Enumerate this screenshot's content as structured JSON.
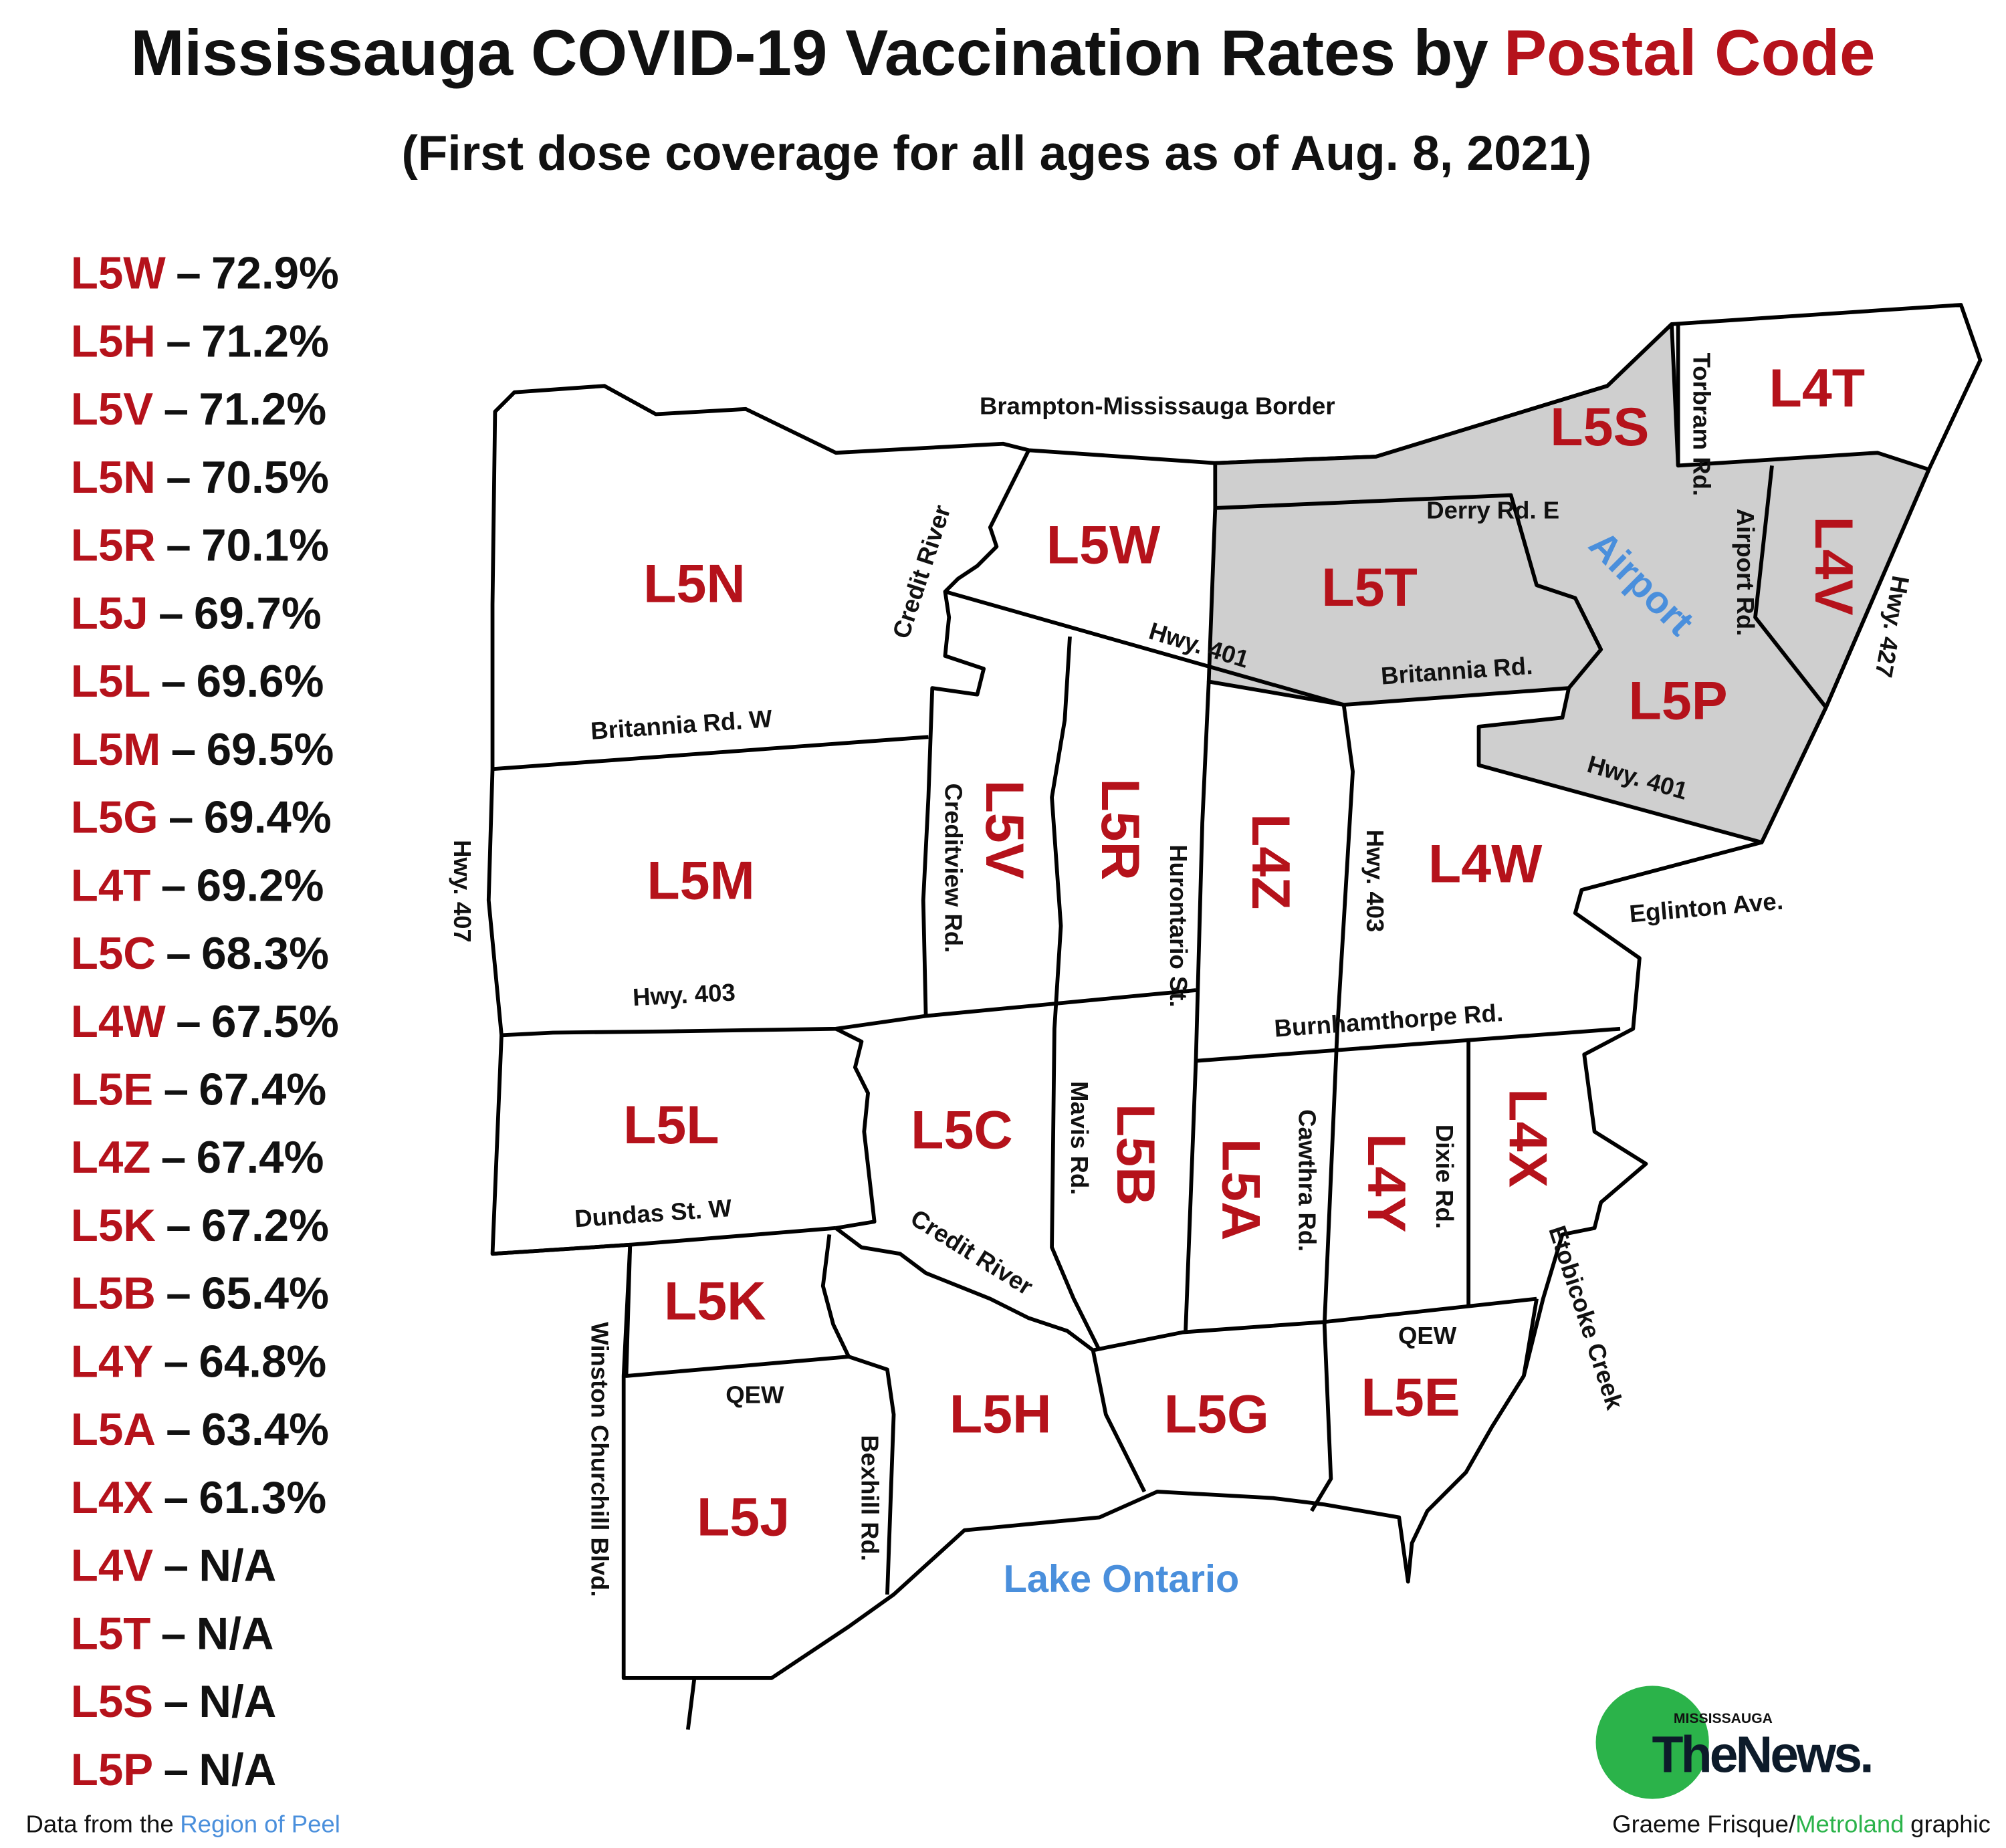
{
  "header": {
    "title": "Mississauga COVID-19 Vaccination Rates by",
    "title_highlight": "Postal Code",
    "subtitle": "(First dose coverage for all ages as of Aug. 8, 2021)"
  },
  "legend": {
    "separator": "–",
    "items": [
      {
        "code": "L5W",
        "rate": "72.9%"
      },
      {
        "code": "L5H",
        "rate": "71.2%"
      },
      {
        "code": "L5V",
        "rate": "71.2%"
      },
      {
        "code": "L5N",
        "rate": "70.5%"
      },
      {
        "code": "L5R",
        "rate": "70.1%"
      },
      {
        "code": "L5J",
        "rate": "69.7%"
      },
      {
        "code": "L5L",
        "rate": "69.6%"
      },
      {
        "code": "L5M",
        "rate": "69.5%"
      },
      {
        "code": "L5G",
        "rate": "69.4%"
      },
      {
        "code": "L4T",
        "rate": "69.2%"
      },
      {
        "code": "L5C",
        "rate": "68.3%"
      },
      {
        "code": "L4W",
        "rate": "67.5%"
      },
      {
        "code": "L5E",
        "rate": "67.4%"
      },
      {
        "code": "L4Z",
        "rate": "67.4%"
      },
      {
        "code": "L5K",
        "rate": "67.2%"
      },
      {
        "code": "L5B",
        "rate": "65.4%"
      },
      {
        "code": "L4Y",
        "rate": "64.8%"
      },
      {
        "code": "L5A",
        "rate": "63.4%"
      },
      {
        "code": "L4X",
        "rate": "61.3%"
      },
      {
        "code": "L4V",
        "rate": "N/A"
      },
      {
        "code": "L5T",
        "rate": "N/A"
      },
      {
        "code": "L5S",
        "rate": "N/A"
      },
      {
        "code": "L5P",
        "rate": "N/A"
      }
    ]
  },
  "map": {
    "regions": [
      "L5N",
      "L5W",
      "L5T",
      "L5S",
      "L4T",
      "L4V",
      "L5P",
      "L5M",
      "L5V",
      "L5R",
      "L4Z",
      "L4W",
      "L5L",
      "L5C",
      "L5B",
      "L5A",
      "L4Y",
      "L4X",
      "L5K",
      "L5H",
      "L5G",
      "L5E",
      "L5J"
    ],
    "roads": [
      "Brampton-Mississauga Border",
      "Credit River",
      "Derry Rd. E",
      "Torbram Rd.",
      "Airport Rd.",
      "Hwy. 427",
      "Hwy. 401",
      "Britannia Rd.",
      "Britannia Rd. W",
      "Hwy. 401",
      "Hwy. 407",
      "Creditview Rd.",
      "Hurontario St.",
      "Hwy. 403",
      "Eglinton Ave.",
      "Hwy. 403",
      "Burnhamthorpe Rd.",
      "Mavis Rd.",
      "Cawthra Rd.",
      "Dixie Rd.",
      "Dundas St. W",
      "Credit River",
      "Etobicoke Creek",
      "QEW",
      "QEW",
      "Winston Churchill Blvd.",
      "Bexhill Rd."
    ],
    "water": [
      "Airport",
      "Lake Ontario"
    ]
  },
  "logo": {
    "small": "MISSISSAUGA",
    "name": "TheNews."
  },
  "footer": {
    "source_prefix": "Data from the",
    "source": "Region of Peel",
    "credit_author": "Graeme Frisque/",
    "credit_org": "Metroland",
    "credit_suffix": "graphic"
  }
}
